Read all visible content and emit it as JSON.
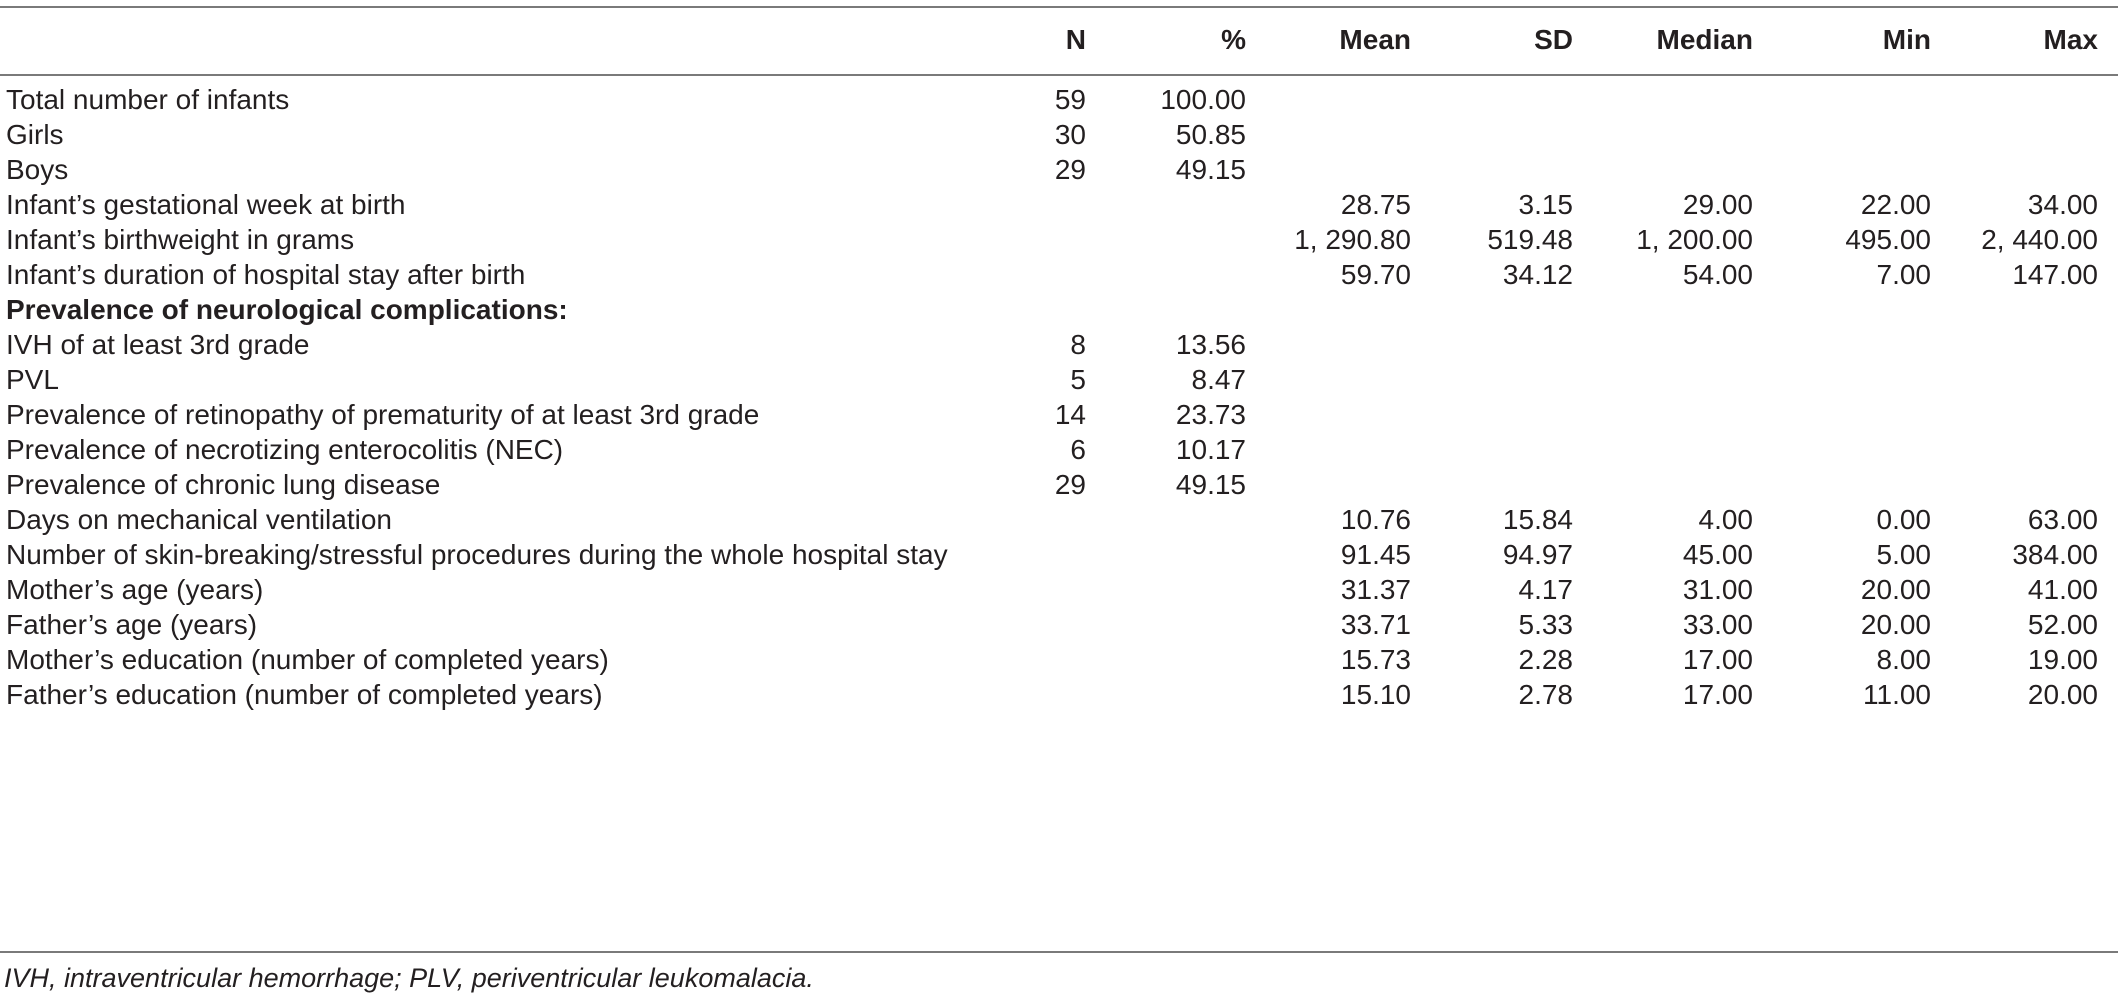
{
  "columns": [
    "N",
    "%",
    "Mean",
    "SD",
    "Median",
    "Min",
    "Max"
  ],
  "rows": [
    {
      "label": "Total number of infants",
      "N": "59",
      "pct": "100.00",
      "mean": "",
      "sd": "",
      "median": "",
      "min": "",
      "max": ""
    },
    {
      "label": "Girls",
      "N": "30",
      "pct": "50.85",
      "mean": "",
      "sd": "",
      "median": "",
      "min": "",
      "max": ""
    },
    {
      "label": "Boys",
      "N": "29",
      "pct": "49.15",
      "mean": "",
      "sd": "",
      "median": "",
      "min": "",
      "max": ""
    },
    {
      "label": "Infant’s gestational week at birth",
      "N": "",
      "pct": "",
      "mean": "28.75",
      "sd": "3.15",
      "median": "29.00",
      "min": "22.00",
      "max": "34.00"
    },
    {
      "label": "Infant’s birthweight in grams",
      "N": "",
      "pct": "",
      "mean": "1, 290.80",
      "sd": "519.48",
      "median": "1, 200.00",
      "min": "495.00",
      "max": "2, 440.00"
    },
    {
      "label": "Infant’s duration of hospital stay after birth",
      "N": "",
      "pct": "",
      "mean": "59.70",
      "sd": "34.12",
      "median": "54.00",
      "min": "7.00",
      "max": "147.00"
    },
    {
      "label": "Prevalence of neurological complications:",
      "bold": true,
      "N": "",
      "pct": "",
      "mean": "",
      "sd": "",
      "median": "",
      "min": "",
      "max": ""
    },
    {
      "label": "IVH of at least 3rd grade",
      "N": "8",
      "pct": "13.56",
      "mean": "",
      "sd": "",
      "median": "",
      "min": "",
      "max": ""
    },
    {
      "label": "PVL",
      "N": "5",
      "pct": "8.47",
      "mean": "",
      "sd": "",
      "median": "",
      "min": "",
      "max": ""
    },
    {
      "label": "Prevalence of retinopathy of prematurity of at least 3rd grade",
      "N": "14",
      "pct": "23.73",
      "mean": "",
      "sd": "",
      "median": "",
      "min": "",
      "max": ""
    },
    {
      "label": "Prevalence of necrotizing enterocolitis (NEC)",
      "N": "6",
      "pct": "10.17",
      "mean": "",
      "sd": "",
      "median": "",
      "min": "",
      "max": ""
    },
    {
      "label": "Prevalence of chronic lung disease",
      "N": "29",
      "pct": "49.15",
      "mean": "",
      "sd": "",
      "median": "",
      "min": "",
      "max": ""
    },
    {
      "label": "Days on mechanical ventilation",
      "N": "",
      "pct": "",
      "mean": "10.76",
      "sd": "15.84",
      "median": "4.00",
      "min": "0.00",
      "max": "63.00"
    },
    {
      "label": "Number of skin-breaking/stressful procedures during the whole hospital stay",
      "N": "",
      "pct": "",
      "mean": "91.45",
      "sd": "94.97",
      "median": "45.00",
      "min": "5.00",
      "max": "384.00"
    },
    {
      "label": "Mother’s age (years)",
      "N": "",
      "pct": "",
      "mean": "31.37",
      "sd": "4.17",
      "median": "31.00",
      "min": "20.00",
      "max": "41.00"
    },
    {
      "label": "Father’s age (years)",
      "N": "",
      "pct": "",
      "mean": "33.71",
      "sd": "5.33",
      "median": "33.00",
      "min": "20.00",
      "max": "52.00"
    },
    {
      "label": "Mother’s education (number of completed years)",
      "N": "",
      "pct": "",
      "mean": "15.73",
      "sd": "2.28",
      "median": "17.00",
      "min": "8.00",
      "max": "19.00"
    },
    {
      "label": "Father’s education (number of completed years)",
      "N": "",
      "pct": "",
      "mean": "15.10",
      "sd": "2.78",
      "median": "17.00",
      "min": "11.00",
      "max": "20.00"
    }
  ],
  "footnote": "IVH, intraventricular hemorrhage; PLV, periventricular leukomalacia."
}
